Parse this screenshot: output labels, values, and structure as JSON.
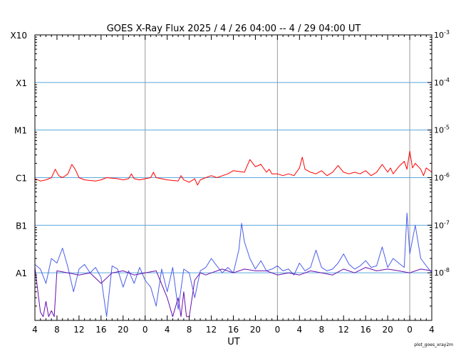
{
  "chart_data": {
    "type": "line",
    "title": "GOES X-Ray Flux   2025  /  4  /  26   04:00 --   4  /  29   04:00    UT",
    "xlabel": "UT",
    "x_range_hours": [
      0,
      72
    ],
    "x_tick_labels": [
      "4",
      "8",
      "12",
      "16",
      "20",
      "0",
      "4",
      "8",
      "12",
      "16",
      "20",
      "0",
      "4",
      "8",
      "12",
      "16",
      "20",
      "0",
      "4"
    ],
    "x_tick_hours": [
      0,
      4,
      8,
      12,
      16,
      20,
      24,
      28,
      32,
      36,
      40,
      44,
      48,
      52,
      56,
      60,
      64,
      68,
      72
    ],
    "day_boundary_hours": [
      20,
      44,
      68
    ],
    "y_scale": "log",
    "y_range_wm2": [
      1e-09,
      0.001
    ],
    "y_left_labels": [
      "X10",
      "X1",
      "M1",
      "C1",
      "B1",
      "A1"
    ],
    "y_right_labels": [
      {
        "base": "10",
        "exp": "-3"
      },
      {
        "base": "10",
        "exp": "-4"
      },
      {
        "base": "10",
        "exp": "-5"
      },
      {
        "base": "10",
        "exp": "-6"
      },
      {
        "base": "10",
        "exp": "-7"
      },
      {
        "base": "10",
        "exp": "-8"
      }
    ],
    "y_right_values_wm2": [
      0.001,
      0.0001,
      1e-05,
      1e-06,
      1e-07,
      1e-08
    ],
    "class_lines_wm2": [
      0.0001,
      1e-05,
      1e-06,
      1e-07,
      1e-08
    ],
    "series": [
      {
        "color": "#ff0000",
        "x_hours": [
          0,
          1,
          2,
          3,
          3.7,
          4.3,
          5,
          6,
          6.7,
          7.3,
          8,
          9,
          11,
          12,
          13,
          15,
          16,
          17,
          17.5,
          18,
          19,
          20,
          21,
          21.5,
          22,
          24,
          26,
          26.5,
          27,
          28,
          29,
          29.5,
          30,
          31,
          32,
          33,
          35,
          36,
          38,
          39,
          40,
          41,
          42,
          42.5,
          43,
          44,
          45,
          46,
          47,
          48,
          48.5,
          49,
          50,
          51,
          52,
          53,
          54,
          55,
          56,
          57,
          58,
          59,
          60,
          61,
          62,
          63,
          64,
          64.5,
          65,
          66,
          67,
          67.5,
          68,
          68.5,
          69,
          70,
          70.5,
          71,
          72
        ],
        "values_wm2": [
          9.5e-07,
          8.5e-07,
          9e-07,
          1e-06,
          1.5e-06,
          1.1e-06,
          1e-06,
          1.2e-06,
          1.9e-06,
          1.5e-06,
          1e-06,
          9e-07,
          8.5e-07,
          9e-07,
          1e-06,
          9.5e-07,
          9e-07,
          9.5e-07,
          1.2e-06,
          9.5e-07,
          9e-07,
          9.5e-07,
          1e-06,
          1.3e-06,
          1e-06,
          9e-07,
          8.5e-07,
          1.1e-06,
          9e-07,
          8e-07,
          9.5e-07,
          7e-07,
          9e-07,
          1e-06,
          1.1e-06,
          1e-06,
          1.2e-06,
          1.4e-06,
          1.3e-06,
          2.4e-06,
          1.7e-06,
          1.9e-06,
          1.3e-06,
          1.5e-06,
          1.2e-06,
          1.2e-06,
          1.1e-06,
          1.2e-06,
          1.1e-06,
          1.6e-06,
          2.7e-06,
          1.5e-06,
          1.3e-06,
          1.2e-06,
          1.4e-06,
          1.1e-06,
          1.3e-06,
          1.8e-06,
          1.3e-06,
          1.2e-06,
          1.3e-06,
          1.2e-06,
          1.4e-06,
          1.1e-06,
          1.3e-06,
          1.9e-06,
          1.3e-06,
          1.6e-06,
          1.2e-06,
          1.7e-06,
          2.2e-06,
          1.5e-06,
          3.6e-06,
          1.6e-06,
          2e-06,
          1.5e-06,
          1.1e-06,
          1.6e-06,
          1.3e-06
        ]
      },
      {
        "color": "#4a5ee8",
        "x_hours": [
          0,
          1,
          2,
          3,
          4,
          5,
          6,
          7,
          8,
          9,
          10,
          11,
          12,
          13,
          14,
          15,
          16,
          17,
          18,
          19,
          20,
          21,
          22,
          23,
          24,
          25,
          26,
          27,
          28,
          29,
          30,
          31,
          32,
          33,
          34,
          35,
          36,
          37,
          37.5,
          38,
          39,
          40,
          41,
          42,
          43,
          44,
          45,
          46,
          47,
          48,
          49,
          50,
          51,
          52,
          53,
          54,
          55,
          56,
          57,
          58,
          59,
          60,
          61,
          62,
          63,
          64,
          65,
          66,
          67,
          67.5,
          68,
          69,
          70,
          71,
          72
        ],
        "values_wm2": [
          1.5e-08,
          1.2e-08,
          6e-09,
          2e-08,
          1.6e-08,
          3.3e-08,
          1.3e-08,
          4e-09,
          1.2e-08,
          1.5e-08,
          1e-08,
          1.3e-08,
          8e-09,
          1.2e-09,
          1.4e-08,
          1.2e-08,
          5e-09,
          1.1e-08,
          6e-09,
          1.3e-08,
          7e-09,
          5e-09,
          2e-09,
          1.2e-08,
          4e-09,
          1.3e-08,
          1.7e-09,
          1.2e-08,
          1e-08,
          3e-09,
          1.1e-08,
          1.3e-08,
          2e-08,
          1.4e-08,
          1e-08,
          1.3e-08,
          1e-08,
          3e-08,
          1.1e-07,
          4.5e-08,
          2e-08,
          1.2e-08,
          1.8e-08,
          1.1e-08,
          1.2e-08,
          1.4e-08,
          1.1e-08,
          1.2e-08,
          9e-09,
          1.6e-08,
          1.1e-08,
          1.3e-08,
          3e-08,
          1.3e-08,
          1.1e-08,
          1.2e-08,
          1.6e-08,
          2.5e-08,
          1.5e-08,
          1.2e-08,
          1.4e-08,
          1.8e-08,
          1.3e-08,
          1.4e-08,
          3.5e-08,
          1.3e-08,
          2e-08,
          1.6e-08,
          1.3e-08,
          1.8e-07,
          2.5e-08,
          1e-07,
          2e-08,
          1.4e-08,
          1e-08
        ]
      },
      {
        "color": "#6a0dad",
        "x_hours": [
          0,
          1,
          1.5,
          2,
          2.5,
          3,
          3.5,
          4,
          6,
          8,
          10,
          12,
          14,
          16,
          18,
          20,
          22,
          24,
          25,
          26,
          26.5,
          27,
          27.5,
          28,
          29,
          30,
          31,
          32,
          34,
          36,
          38,
          40,
          42,
          44,
          46,
          48,
          50,
          52,
          54,
          56,
          58,
          60,
          62,
          64,
          66,
          68,
          70,
          72
        ],
        "values_wm2": [
          1.3e-08,
          1.5e-09,
          1.2e-09,
          2.5e-09,
          1.2e-09,
          1.6e-09,
          1.2e-09,
          1.1e-08,
          1e-08,
          9e-09,
          1e-08,
          6e-09,
          1e-08,
          1.1e-08,
          9e-09,
          1e-08,
          1.1e-08,
          3e-09,
          1.2e-09,
          3e-09,
          1.2e-09,
          4e-09,
          1.2e-09,
          1.2e-09,
          7e-09,
          1e-08,
          9e-09,
          1e-08,
          1.2e-08,
          1e-08,
          1.2e-08,
          1.1e-08,
          1.1e-08,
          9e-09,
          1e-08,
          9e-09,
          1.1e-08,
          1e-08,
          9e-09,
          1.2e-08,
          1e-08,
          1.3e-08,
          1.1e-08,
          1.2e-08,
          1.1e-08,
          1e-08,
          1.2e-08,
          1.1e-08
        ]
      }
    ]
  },
  "credit": "plot_goes_xray2m"
}
